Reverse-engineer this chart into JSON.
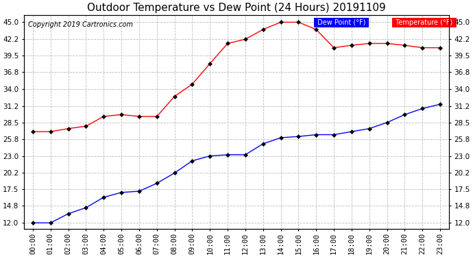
{
  "title": "Outdoor Temperature vs Dew Point (24 Hours) 20191109",
  "copyright": "Copyright 2019 Cartronics.com",
  "legend_labels": [
    "Dew Point (°F)",
    "Temperature (°F)"
  ],
  "x_labels": [
    "00:00",
    "01:00",
    "02:00",
    "03:00",
    "04:00",
    "05:00",
    "06:00",
    "07:00",
    "08:00",
    "09:00",
    "10:00",
    "11:00",
    "12:00",
    "13:00",
    "14:00",
    "15:00",
    "16:00",
    "17:00",
    "18:00",
    "19:00",
    "20:00",
    "21:00",
    "22:00",
    "23:00"
  ],
  "y_ticks": [
    12.0,
    14.8,
    17.5,
    20.2,
    23.0,
    25.8,
    28.5,
    31.2,
    34.0,
    36.8,
    39.5,
    42.2,
    45.0
  ],
  "ylim": [
    11.0,
    46.2
  ],
  "temperature": [
    27.0,
    27.0,
    27.5,
    27.9,
    29.5,
    29.8,
    29.5,
    29.5,
    32.8,
    34.8,
    38.2,
    41.5,
    42.2,
    43.8,
    45.0,
    45.0,
    43.8,
    40.8,
    41.2,
    41.5,
    41.5,
    41.2,
    40.8,
    40.8
  ],
  "dewpoint": [
    12.0,
    12.0,
    13.5,
    14.5,
    16.2,
    17.0,
    17.2,
    18.5,
    20.2,
    22.2,
    23.0,
    23.2,
    23.2,
    25.0,
    26.0,
    26.2,
    26.5,
    26.5,
    27.0,
    27.5,
    28.5,
    29.8,
    30.8,
    31.5
  ],
  "background_color": "#ffffff",
  "grid_color": "#bbbbbb",
  "title_fontsize": 11,
  "tick_fontsize": 7.5,
  "copyright_fontsize": 7
}
